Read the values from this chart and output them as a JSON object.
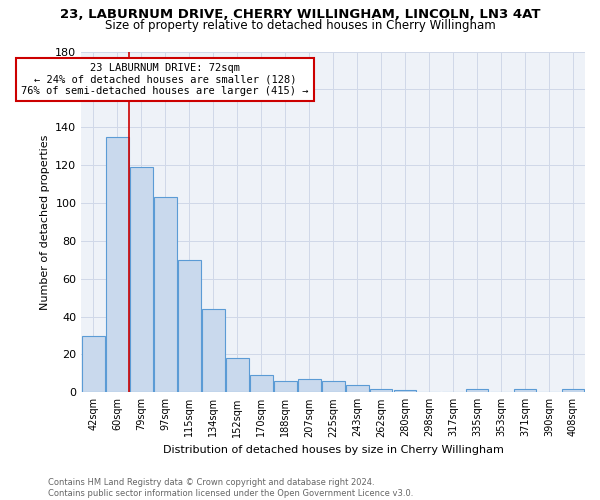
{
  "title_line1": "23, LABURNUM DRIVE, CHERRY WILLINGHAM, LINCOLN, LN3 4AT",
  "title_line2": "Size of property relative to detached houses in Cherry Willingham",
  "xlabel": "Distribution of detached houses by size in Cherry Willingham",
  "ylabel": "Number of detached properties",
  "footer": "Contains HM Land Registry data © Crown copyright and database right 2024.\nContains public sector information licensed under the Open Government Licence v3.0.",
  "bar_labels": [
    "42sqm",
    "60sqm",
    "79sqm",
    "97sqm",
    "115sqm",
    "134sqm",
    "152sqm",
    "170sqm",
    "188sqm",
    "207sqm",
    "225sqm",
    "243sqm",
    "262sqm",
    "280sqm",
    "298sqm",
    "317sqm",
    "335sqm",
    "353sqm",
    "371sqm",
    "390sqm",
    "408sqm"
  ],
  "bar_values": [
    30,
    135,
    119,
    103,
    70,
    44,
    18,
    9,
    6,
    7,
    6,
    4,
    2,
    1,
    0,
    0,
    2,
    0,
    2,
    0,
    2
  ],
  "bar_color": "#c9d9ed",
  "bar_edge_color": "#5b9bd5",
  "annotation_text": "23 LABURNUM DRIVE: 72sqm\n← 24% of detached houses are smaller (128)\n76% of semi-detached houses are larger (415) →",
  "annotation_box_edge": "#cc0000",
  "vline_color": "#cc0000",
  "vline_x_index": 1.5,
  "ylim": [
    0,
    180
  ],
  "yticks": [
    0,
    20,
    40,
    60,
    80,
    100,
    120,
    140,
    160,
    180
  ],
  "grid_color": "#d0d8e8",
  "bg_color": "#eef2f8",
  "fig_color": "#ffffff",
  "title1_fontsize": 9.5,
  "title2_fontsize": 8.5,
  "xlabel_fontsize": 8,
  "ylabel_fontsize": 8,
  "tick_fontsize": 7,
  "annot_fontsize": 7.5,
  "footer_fontsize": 6.0
}
